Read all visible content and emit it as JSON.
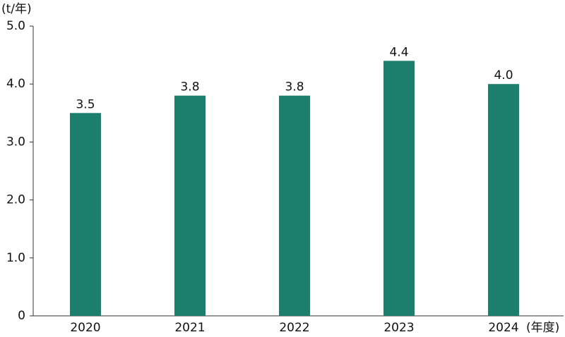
{
  "chart_data": {
    "type": "bar",
    "y_label": "(t/年)",
    "x_label": "(年度)",
    "categories": [
      "2020",
      "2021",
      "2022",
      "2023",
      "2024"
    ],
    "values": [
      3.5,
      3.8,
      3.8,
      4.4,
      4.0
    ],
    "value_labels": [
      "3.5",
      "3.8",
      "3.8",
      "4.4",
      "4.0"
    ],
    "color": "#1b7f6b",
    "ylim": [
      0,
      5
    ],
    "yticks": [
      0,
      {
        "value": 1,
        "label": "1.0"
      },
      {
        "value": 2,
        "label": "2.0"
      },
      {
        "value": 3,
        "label": "3.0"
      },
      {
        "value": 4,
        "label": "4.0"
      },
      {
        "value": 5,
        "label": "5.0"
      }
    ],
    "grid": false
  }
}
